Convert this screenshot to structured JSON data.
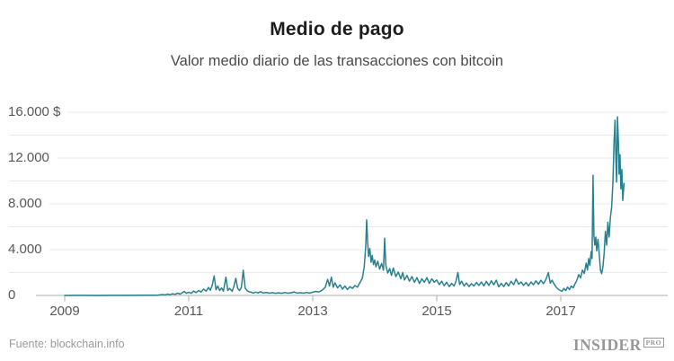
{
  "header": {
    "title": "Medio de pago",
    "subtitle": "Valor medio diario de las transacciones con bitcoin"
  },
  "footer": {
    "source": "Fuente: blockchain.info",
    "logo_main": "INSIDER",
    "logo_badge": "PRO"
  },
  "colors": {
    "line": "#28818e",
    "gridline": "#e9e9e9",
    "axis": "#c8c8c8",
    "title": "#1d1d1f",
    "subtitle": "#4a4a4c",
    "axis_label": "#58585a",
    "footer_text": "#9b9b9b"
  },
  "chart_data": {
    "type": "line",
    "title": "Medio de pago",
    "subtitle": "Valor medio diario de las transacciones con bitcoin",
    "unit": "USD",
    "xlim": [
      2008.95,
      2018.15
    ],
    "ylim": [
      0,
      16000
    ],
    "grid": true,
    "legend": false,
    "x_ticks": [
      2009,
      2011,
      2013,
      2015,
      2017
    ],
    "x_tick_labels": [
      "2009",
      "2011",
      "2013",
      "2015",
      "2017"
    ],
    "y_ticks": [
      0,
      4000,
      8000,
      12000,
      16000
    ],
    "y_tick_labels": [
      "0",
      "4.000",
      "8.000",
      "12.000",
      "16.000 $"
    ],
    "y_gridlines": [
      2000,
      4000,
      6000,
      8000,
      10000,
      12000,
      14000,
      16000
    ],
    "series": [
      {
        "name": "Valor medio diario de las transacciones con bitcoin",
        "color": "#28818e",
        "points": [
          [
            2009.0,
            3
          ],
          [
            2009.25,
            4
          ],
          [
            2009.5,
            3
          ],
          [
            2009.75,
            5
          ],
          [
            2010.0,
            10
          ],
          [
            2010.2,
            18
          ],
          [
            2010.35,
            12
          ],
          [
            2010.5,
            35
          ],
          [
            2010.58,
            80
          ],
          [
            2010.62,
            45
          ],
          [
            2010.66,
            120
          ],
          [
            2010.7,
            65
          ],
          [
            2010.74,
            150
          ],
          [
            2010.78,
            95
          ],
          [
            2010.82,
            200
          ],
          [
            2010.86,
            115
          ],
          [
            2010.9,
            260
          ],
          [
            2010.93,
            350
          ],
          [
            2010.96,
            185
          ],
          [
            2011.0,
            280
          ],
          [
            2011.04,
            185
          ],
          [
            2011.08,
            380
          ],
          [
            2011.12,
            240
          ],
          [
            2011.16,
            430
          ],
          [
            2011.2,
            300
          ],
          [
            2011.24,
            560
          ],
          [
            2011.28,
            380
          ],
          [
            2011.32,
            700
          ],
          [
            2011.35,
            450
          ],
          [
            2011.38,
            900
          ],
          [
            2011.41,
            1700
          ],
          [
            2011.44,
            500
          ],
          [
            2011.47,
            820
          ],
          [
            2011.5,
            420
          ],
          [
            2011.53,
            650
          ],
          [
            2011.56,
            380
          ],
          [
            2011.6,
            1600
          ],
          [
            2011.63,
            430
          ],
          [
            2011.66,
            620
          ],
          [
            2011.7,
            360
          ],
          [
            2011.73,
            820
          ],
          [
            2011.76,
            1500
          ],
          [
            2011.79,
            620
          ],
          [
            2011.82,
            420
          ],
          [
            2011.85,
            700
          ],
          [
            2011.88,
            2200
          ],
          [
            2011.91,
            650
          ],
          [
            2011.94,
            420
          ],
          [
            2011.97,
            320
          ],
          [
            2012.0,
            300
          ],
          [
            2012.04,
            200
          ],
          [
            2012.08,
            290
          ],
          [
            2012.12,
            220
          ],
          [
            2012.16,
            330
          ],
          [
            2012.2,
            210
          ],
          [
            2012.25,
            270
          ],
          [
            2012.3,
            195
          ],
          [
            2012.35,
            245
          ],
          [
            2012.4,
            185
          ],
          [
            2012.45,
            235
          ],
          [
            2012.5,
            185
          ],
          [
            2012.55,
            255
          ],
          [
            2012.6,
            195
          ],
          [
            2012.65,
            235
          ],
          [
            2012.7,
            305
          ],
          [
            2012.75,
            205
          ],
          [
            2012.8,
            245
          ],
          [
            2012.85,
            195
          ],
          [
            2012.9,
            255
          ],
          [
            2012.95,
            205
          ],
          [
            2013.0,
            285
          ],
          [
            2013.05,
            355
          ],
          [
            2013.1,
            305
          ],
          [
            2013.15,
            455
          ],
          [
            2013.2,
            700
          ],
          [
            2013.24,
            1400
          ],
          [
            2013.27,
            820
          ],
          [
            2013.3,
            1600
          ],
          [
            2013.33,
            720
          ],
          [
            2013.36,
            1100
          ],
          [
            2013.4,
            660
          ],
          [
            2013.44,
            920
          ],
          [
            2013.48,
            560
          ],
          [
            2013.52,
            820
          ],
          [
            2013.56,
            520
          ],
          [
            2013.6,
            760
          ],
          [
            2013.64,
            620
          ],
          [
            2013.68,
            860
          ],
          [
            2013.72,
            720
          ],
          [
            2013.76,
            1100
          ],
          [
            2013.8,
            1500
          ],
          [
            2013.83,
            2500
          ],
          [
            2013.855,
            4300
          ],
          [
            2013.87,
            6600
          ],
          [
            2013.885,
            4700
          ],
          [
            2013.9,
            3400
          ],
          [
            2013.92,
            4100
          ],
          [
            2013.94,
            2900
          ],
          [
            2013.96,
            3500
          ],
          [
            2013.98,
            2700
          ],
          [
            2014.0,
            3100
          ],
          [
            2014.02,
            2500
          ],
          [
            2014.05,
            3000
          ],
          [
            2014.08,
            2300
          ],
          [
            2014.11,
            2800
          ],
          [
            2014.14,
            2200
          ],
          [
            2014.16,
            5000
          ],
          [
            2014.18,
            2600
          ],
          [
            2014.21,
            1950
          ],
          [
            2014.24,
            2350
          ],
          [
            2014.27,
            1750
          ],
          [
            2014.3,
            2400
          ],
          [
            2014.34,
            1650
          ],
          [
            2014.38,
            2050
          ],
          [
            2014.42,
            1450
          ],
          [
            2014.45,
            2000
          ],
          [
            2014.48,
            1350
          ],
          [
            2014.52,
            1750
          ],
          [
            2014.56,
            1250
          ],
          [
            2014.6,
            1650
          ],
          [
            2014.64,
            1150
          ],
          [
            2014.68,
            1550
          ],
          [
            2014.72,
            1050
          ],
          [
            2014.76,
            1450
          ],
          [
            2014.8,
            1150
          ],
          [
            2014.84,
            1550
          ],
          [
            2014.88,
            1050
          ],
          [
            2014.92,
            1450
          ],
          [
            2014.96,
            1150
          ],
          [
            2015.0,
            1350
          ],
          [
            2015.04,
            950
          ],
          [
            2015.08,
            1250
          ],
          [
            2015.12,
            850
          ],
          [
            2015.16,
            1150
          ],
          [
            2015.2,
            780
          ],
          [
            2015.24,
            1050
          ],
          [
            2015.28,
            820
          ],
          [
            2015.31,
            1250
          ],
          [
            2015.34,
            2000
          ],
          [
            2015.37,
            950
          ],
          [
            2015.4,
            1250
          ],
          [
            2015.44,
            830
          ],
          [
            2015.48,
            1080
          ],
          [
            2015.52,
            780
          ],
          [
            2015.56,
            1030
          ],
          [
            2015.6,
            830
          ],
          [
            2015.64,
            1130
          ],
          [
            2015.68,
            880
          ],
          [
            2015.72,
            1180
          ],
          [
            2015.76,
            830
          ],
          [
            2015.8,
            1230
          ],
          [
            2015.84,
            880
          ],
          [
            2015.88,
            1280
          ],
          [
            2015.92,
            930
          ],
          [
            2015.96,
            1330
          ],
          [
            2016.0,
            750
          ],
          [
            2016.04,
            1050
          ],
          [
            2016.08,
            780
          ],
          [
            2016.12,
            1130
          ],
          [
            2016.16,
            830
          ],
          [
            2016.2,
            1230
          ],
          [
            2016.24,
            930
          ],
          [
            2016.28,
            1430
          ],
          [
            2016.32,
            980
          ],
          [
            2016.36,
            1180
          ],
          [
            2016.4,
            880
          ],
          [
            2016.44,
            1130
          ],
          [
            2016.48,
            830
          ],
          [
            2016.52,
            1180
          ],
          [
            2016.56,
            930
          ],
          [
            2016.6,
            1280
          ],
          [
            2016.64,
            980
          ],
          [
            2016.68,
            1330
          ],
          [
            2016.72,
            1030
          ],
          [
            2016.76,
            1380
          ],
          [
            2016.8,
            2000
          ],
          [
            2016.83,
            1080
          ],
          [
            2016.86,
            1330
          ],
          [
            2016.9,
            930
          ],
          [
            2016.94,
            630
          ],
          [
            2016.98,
            470
          ],
          [
            2017.02,
            360
          ],
          [
            2017.05,
            620
          ],
          [
            2017.08,
            420
          ],
          [
            2017.11,
            720
          ],
          [
            2017.14,
            520
          ],
          [
            2017.17,
            820
          ],
          [
            2017.2,
            670
          ],
          [
            2017.23,
            1020
          ],
          [
            2017.26,
            1320
          ],
          [
            2017.29,
            1820
          ],
          [
            2017.32,
            1520
          ],
          [
            2017.35,
            2220
          ],
          [
            2017.38,
            1920
          ],
          [
            2017.41,
            2820
          ],
          [
            2017.43,
            2220
          ],
          [
            2017.45,
            3220
          ],
          [
            2017.47,
            2620
          ],
          [
            2017.49,
            3820
          ],
          [
            2017.505,
            3220
          ],
          [
            2017.52,
            10500
          ],
          [
            2017.535,
            5200
          ],
          [
            2017.55,
            4400
          ],
          [
            2017.565,
            5100
          ],
          [
            2017.58,
            3900
          ],
          [
            2017.6,
            4900
          ],
          [
            2017.62,
            3600
          ],
          [
            2017.64,
            2200
          ],
          [
            2017.66,
            1900
          ],
          [
            2017.68,
            2500
          ],
          [
            2017.7,
            3700
          ],
          [
            2017.72,
            5600
          ],
          [
            2017.74,
            4400
          ],
          [
            2017.76,
            6400
          ],
          [
            2017.78,
            5100
          ],
          [
            2017.8,
            6800
          ],
          [
            2017.82,
            7700
          ],
          [
            2017.84,
            9800
          ],
          [
            2017.86,
            13400
          ],
          [
            2017.875,
            15300
          ],
          [
            2017.89,
            11600
          ],
          [
            2017.9,
            9900
          ],
          [
            2017.915,
            15600
          ],
          [
            2017.93,
            13200
          ],
          [
            2017.94,
            10600
          ],
          [
            2017.955,
            12300
          ],
          [
            2017.97,
            9300
          ],
          [
            2017.985,
            11000
          ],
          [
            2018.0,
            8300
          ],
          [
            2018.02,
            9800
          ]
        ]
      }
    ]
  }
}
